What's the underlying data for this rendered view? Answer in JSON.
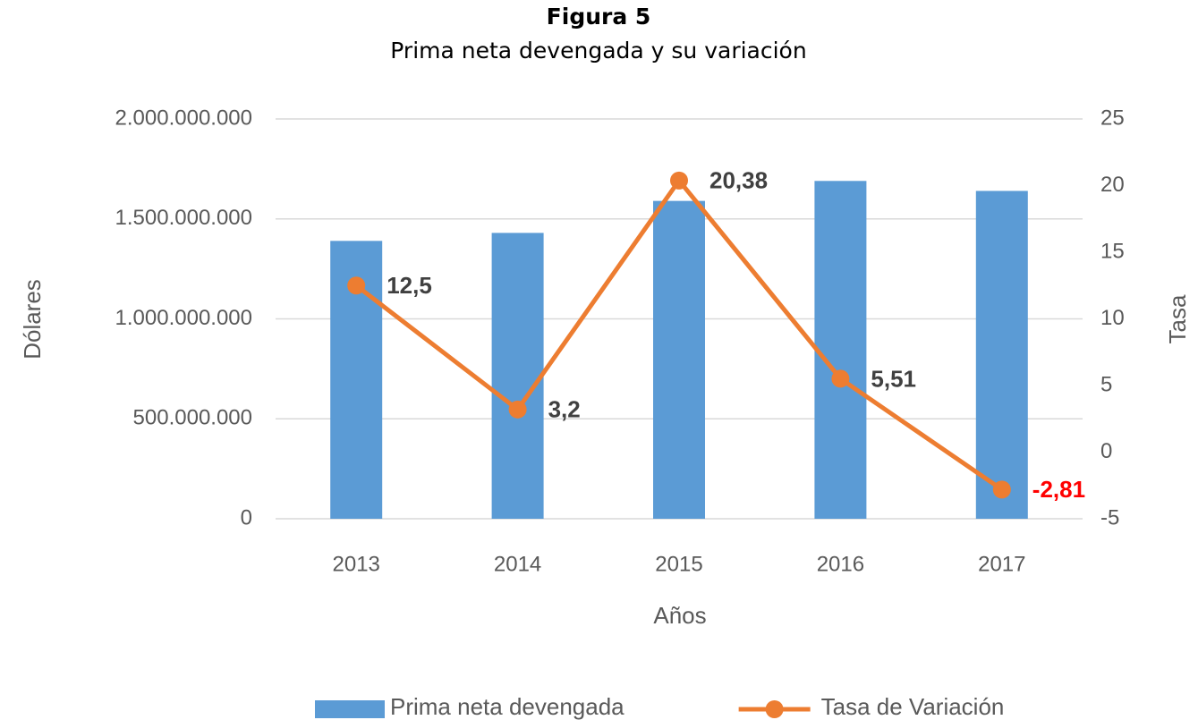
{
  "chart_data": {
    "type": "bar_line",
    "title": "Figura 5",
    "subtitle": "Prima neta devengada y su variación",
    "x_label": "Años",
    "y_label": "Dólares",
    "y2_label": "Tasa",
    "categories": [
      "2013",
      "2014",
      "2015",
      "2016",
      "2017"
    ],
    "series": [
      {
        "name": "Prima neta devengada",
        "type": "bar",
        "color": "#5b9bd5",
        "values": [
          1390000000,
          1430000000,
          1590000000,
          1690000000,
          1640000000
        ]
      },
      {
        "name": "Tasa de Variación",
        "type": "line",
        "axis": "y2",
        "color": "#ed7d31",
        "values": [
          12.5,
          3.2,
          20.38,
          5.51,
          -2.81
        ],
        "value_labels": [
          "12,5",
          "3,2",
          "20,38",
          "5,51",
          "-2,81"
        ],
        "value_label_colors": [
          "#404040",
          "#404040",
          "#404040",
          "#404040",
          "#ff0000"
        ]
      }
    ],
    "ylim": [
      0,
      2000000000
    ],
    "yticks": [
      0,
      {
        "value": 500000000,
        "label": "500.000.000"
      },
      {
        "value": 1000000000,
        "label": "1.000.000.000"
      },
      {
        "value": 1500000000,
        "label": "1.500.000.000"
      },
      {
        "value": 2000000000,
        "label": "2.000.000.000"
      }
    ],
    "y2lim": [
      -5,
      25
    ],
    "y2ticks": [
      -5,
      0,
      5,
      10,
      15,
      20,
      25
    ],
    "grid": true,
    "legend": "bottom"
  }
}
